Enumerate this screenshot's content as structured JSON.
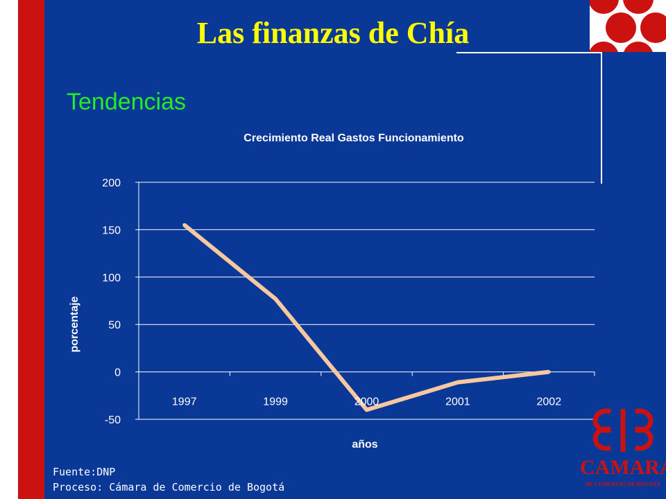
{
  "slide": {
    "title": "Las finanzas de Chía",
    "subtitle": "Tendencias",
    "source_line1": "Fuente:DNP",
    "source_line2": "Proceso: Cámara de Comercio de Bogotá"
  },
  "logo": {
    "name": "CAMARA",
    "tagline": "DE COMERCIO DE BOGOTA"
  },
  "colors": {
    "background": "#0a3896",
    "title": "#ffff00",
    "subtitle": "#22ee22",
    "accent_red": "#cc1111",
    "line": "#f8c8a0"
  },
  "chart_data": {
    "type": "line",
    "title": "Crecimiento Real Gastos Funcionamiento",
    "xlabel": "años",
    "ylabel": "porcentaje",
    "categories": [
      "1997",
      "1999",
      "2000",
      "2001",
      "2002"
    ],
    "series": [
      {
        "values": [
          155,
          77,
          -40,
          -11,
          0
        ]
      }
    ],
    "ylim": [
      -50,
      200
    ],
    "yticks": [
      -50,
      0,
      50,
      100,
      150,
      200
    ],
    "grid": true
  }
}
